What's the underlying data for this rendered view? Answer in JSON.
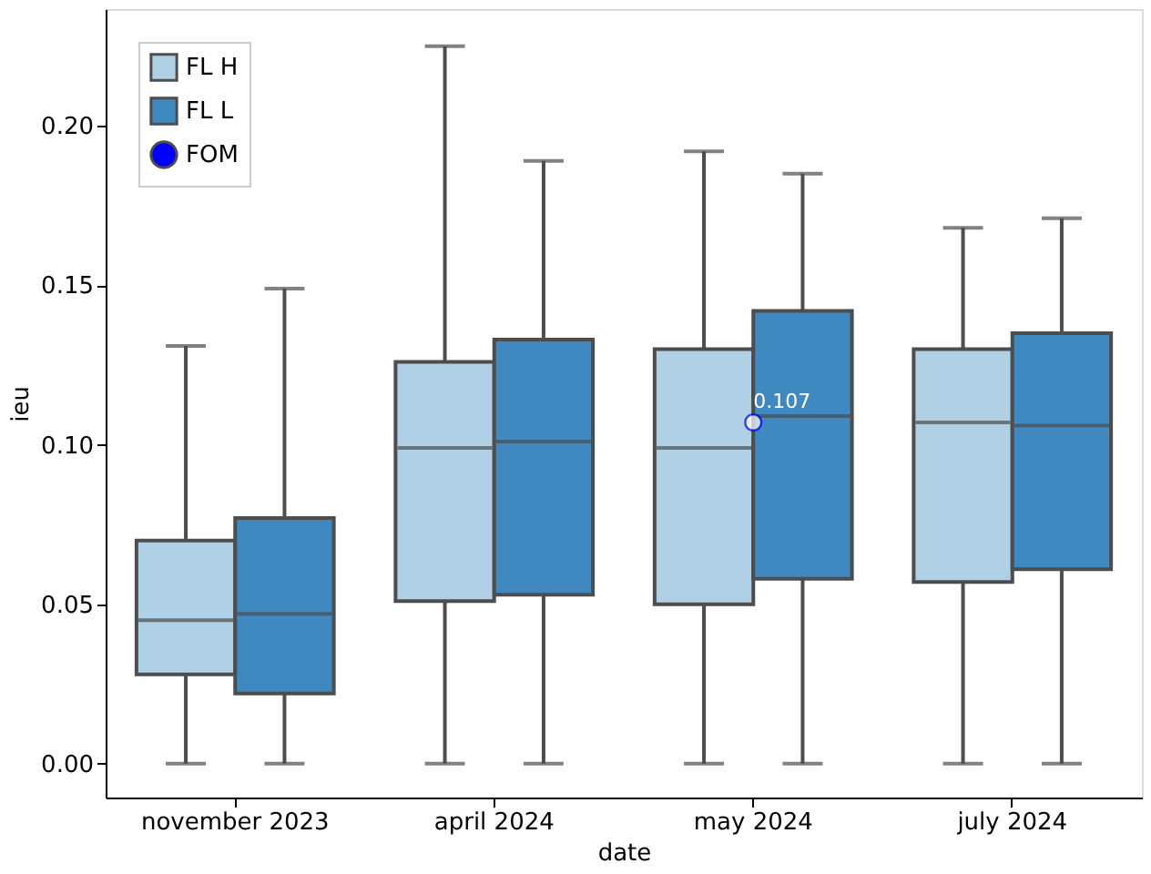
{
  "chart_data": {
    "type": "box",
    "xlabel": "date",
    "ylabel": "ieu",
    "categories": [
      "november 2023",
      "april 2024",
      "may 2024",
      "july 2024"
    ],
    "ylim": [
      -0.0106,
      0.2366
    ],
    "yticks": [
      {
        "value": 0,
        "label": "0.00"
      },
      0.05,
      {
        "value": 0.1,
        "label": "0.10"
      },
      0.15,
      {
        "value": 0.2,
        "label": "0.20"
      }
    ],
    "grid": false,
    "legend": "top left",
    "series": [
      {
        "name": "FL H",
        "type": "box",
        "color": "#b0d0e6",
        "boxes": [
          {
            "low": 0,
            "q1": 0.028,
            "median": 0.045,
            "q3": 0.07,
            "high": 0.131
          },
          {
            "low": 0,
            "q1": 0.051,
            "median": 0.099,
            "q3": 0.126,
            "high": 0.225
          },
          {
            "low": 0,
            "q1": 0.05,
            "median": 0.099,
            "q3": 0.13,
            "high": 0.192
          },
          {
            "low": 0,
            "q1": 0.057,
            "median": 0.107,
            "q3": 0.13,
            "high": 0.168
          }
        ]
      },
      {
        "name": "FL L",
        "type": "box",
        "color": "#3f88c0",
        "boxes": [
          {
            "low": 0,
            "q1": 0.022,
            "median": 0.047,
            "q3": 0.077,
            "high": 0.149
          },
          {
            "low": 0,
            "q1": 0.053,
            "median": 0.101,
            "q3": 0.133,
            "high": 0.189
          },
          {
            "low": 0,
            "q1": 0.058,
            "median": 0.109,
            "q3": 0.142,
            "high": 0.185
          },
          {
            "low": 0,
            "q1": 0.061,
            "median": 0.106,
            "q3": 0.135,
            "high": 0.171
          }
        ]
      },
      {
        "name": "FOM",
        "type": "scatter",
        "color": "#0000ff",
        "marker": "circle",
        "x": [
          "may 2024"
        ],
        "values": [
          0.107
        ],
        "value_labels": [
          "0.107"
        ]
      }
    ]
  }
}
